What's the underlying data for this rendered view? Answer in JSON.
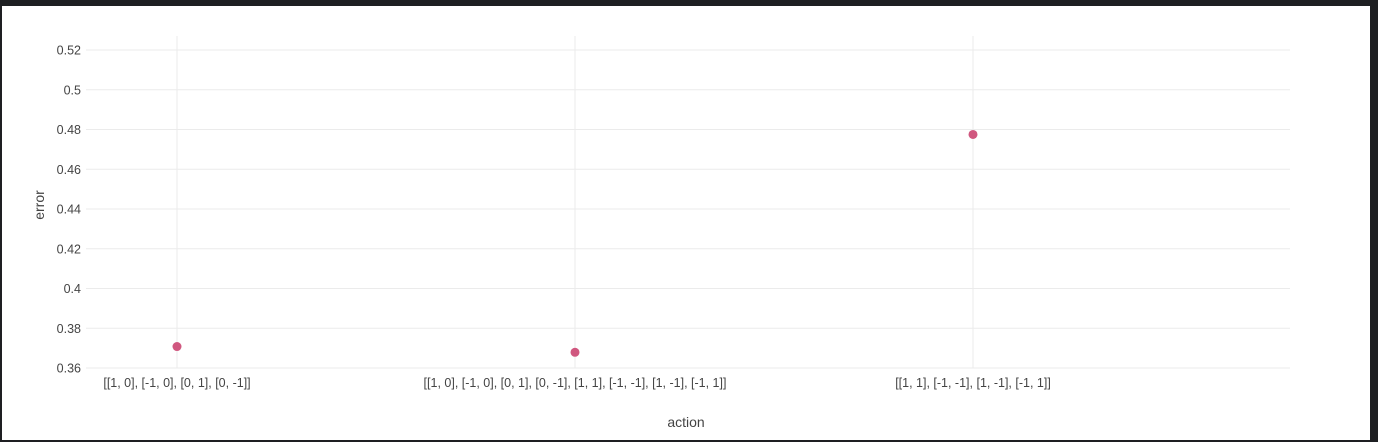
{
  "chart_data": {
    "type": "scatter",
    "categories": [
      "[[1, 0], [-1, 0], [0, 1], [0, -1]]",
      "[[1, 0], [-1, 0], [0, 1], [0, -1], [1, 1], [-1, -1], [1, -1], [-1, 1]]",
      "[[1, 1], [-1, -1], [1, -1], [-1, 1]]"
    ],
    "values": [
      0.3708,
      0.3679,
      0.4775
    ],
    "xlabel": "action",
    "ylabel": "error",
    "ylim": [
      0.36,
      0.52
    ],
    "yticks": [
      "0.36",
      "0.38",
      "0.4",
      "0.42",
      "0.44",
      "0.46",
      "0.48",
      "0.5",
      "0.52"
    ],
    "grid": true,
    "marker_color": "#d0577f"
  }
}
